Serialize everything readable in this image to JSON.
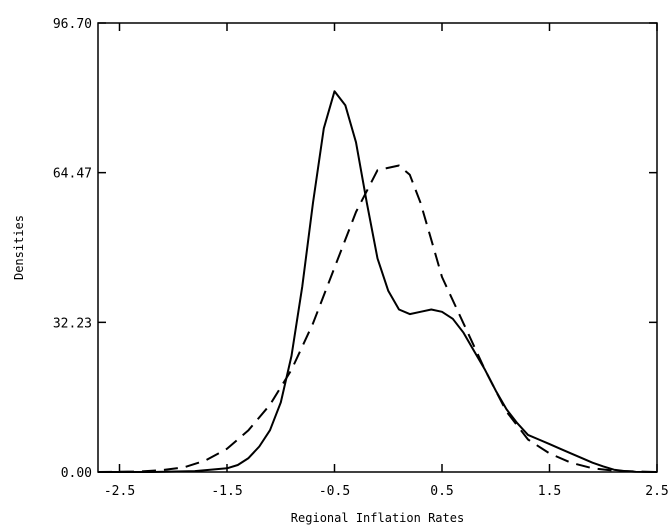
{
  "chart_data": {
    "type": "line",
    "title": "",
    "xlabel": "Regional Inflation Rates",
    "ylabel": "Densities",
    "xlim": [
      -2.7,
      2.5
    ],
    "ylim": [
      0,
      96.7
    ],
    "xticks": [
      -2.5,
      -1.5,
      -0.5,
      0.5,
      1.5,
      2.5
    ],
    "xtick_labels": [
      "-2.5",
      "-1.5",
      "-0.5",
      "0.5",
      "1.5",
      "2.5"
    ],
    "yticks": [
      0,
      32.23,
      64.47,
      96.7
    ],
    "ytick_labels": [
      "0.00",
      "32.23",
      "64.47",
      "96.70"
    ],
    "grid": false,
    "legend": "none",
    "series": [
      {
        "style": "solid",
        "color": "#000000",
        "x": [
          -2.7,
          -2.2,
          -1.8,
          -1.5,
          -1.4,
          -1.3,
          -1.2,
          -1.1,
          -1.0,
          -0.9,
          -0.8,
          -0.7,
          -0.6,
          -0.5,
          -0.4,
          -0.3,
          -0.2,
          -0.1,
          0.0,
          0.1,
          0.2,
          0.3,
          0.4,
          0.5,
          0.6,
          0.7,
          0.8,
          0.9,
          1.0,
          1.1,
          1.2,
          1.3,
          1.4,
          1.5,
          1.6,
          1.7,
          1.8,
          1.9,
          2.0,
          2.1,
          2.2,
          2.3,
          2.5
        ],
        "y": [
          0,
          0,
          0.2,
          0.8,
          1.5,
          3,
          5.5,
          9,
          15,
          25,
          40,
          58,
          74,
          82,
          79,
          71,
          58,
          46,
          39,
          35,
          34,
          34.5,
          35,
          34.5,
          33,
          30,
          26,
          22,
          17.5,
          13.5,
          10.5,
          8,
          7,
          6,
          5,
          4,
          3,
          2,
          1.2,
          0.5,
          0.2,
          0.05,
          0
        ]
      },
      {
        "style": "dashed",
        "color": "#000000",
        "x": [
          -2.7,
          -2.3,
          -2.1,
          -1.9,
          -1.7,
          -1.5,
          -1.3,
          -1.1,
          -0.9,
          -0.7,
          -0.5,
          -0.3,
          -0.1,
          0.1,
          0.2,
          0.3,
          0.4,
          0.5,
          0.7,
          0.9,
          1.1,
          1.3,
          1.5,
          1.7,
          1.9,
          2.1,
          2.3,
          2.5
        ],
        "y": [
          0,
          0.1,
          0.4,
          1,
          2.5,
          5,
          9,
          14.5,
          22,
          32,
          44,
          56,
          65,
          66,
          64,
          58,
          50,
          42,
          32,
          22,
          13,
          7,
          4,
          2,
          0.8,
          0.3,
          0.1,
          0
        ]
      }
    ]
  }
}
